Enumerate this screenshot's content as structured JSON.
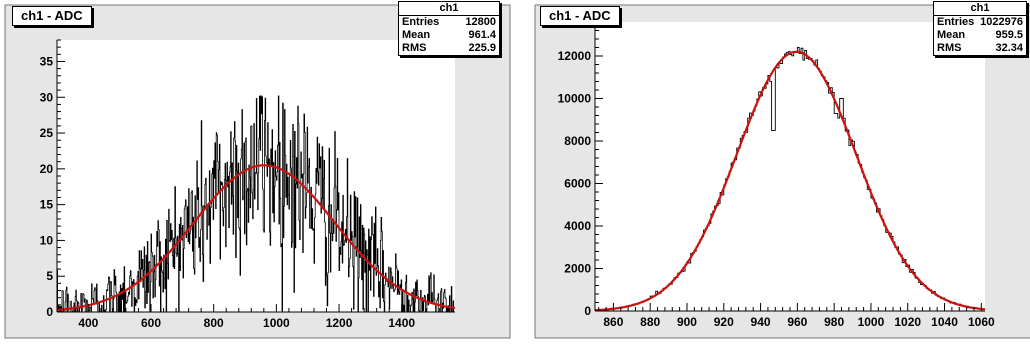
{
  "chart_data": [
    {
      "type": "histogram",
      "title": "ch1 - ADC",
      "stats": {
        "name": "ch1",
        "rows": [
          {
            "label": "Entries",
            "value": "12800"
          },
          {
            "label": "Mean",
            "value": "961.4"
          },
          {
            "label": "RMS",
            "value": "225.9"
          }
        ]
      },
      "xlim": [
        300,
        1570
      ],
      "ylim": [
        0,
        38
      ],
      "xticks": [
        400,
        600,
        800,
        1000,
        1200,
        1400
      ],
      "yticks": [
        0,
        5,
        10,
        15,
        20,
        25,
        30,
        35
      ],
      "bin_width": 2,
      "fit": {
        "type": "gaussian",
        "amplitude": 20.5,
        "mean": 961.4,
        "sigma": 225.9
      },
      "noise": 5.5,
      "grid": false,
      "colors": {
        "frame_bg": "#e6e6e6",
        "plot_bg": "#ffffff",
        "histogram": "#000000",
        "fit": "#cc1111"
      }
    },
    {
      "type": "histogram",
      "title": "ch1 - ADC",
      "stats": {
        "name": "ch1",
        "rows": [
          {
            "label": "Entries",
            "value": "1022976"
          },
          {
            "label": "Mean",
            "value": "959.5"
          },
          {
            "label": "RMS",
            "value": "32.34"
          }
        ]
      },
      "xlim": [
        850,
        1062
      ],
      "ylim": [
        0,
        13600
      ],
      "xticks": [
        860,
        880,
        900,
        920,
        940,
        960,
        980,
        1000,
        1020,
        1040,
        1060
      ],
      "yticks": [
        0,
        2000,
        4000,
        6000,
        8000,
        10000,
        12000
      ],
      "bin_width": 1,
      "fit": {
        "type": "gaussian",
        "amplitude": 12200,
        "mean": 959.5,
        "sigma": 32.34
      },
      "noise": 180,
      "dips": [
        {
          "x": 947,
          "value": 8500
        },
        {
          "x": 981,
          "value": 9300
        },
        {
          "x": 984,
          "value": 10000
        }
      ],
      "grid": false,
      "colors": {
        "frame_bg": "#e6e6e6",
        "plot_bg": "#ffffff",
        "histogram": "#000000",
        "fit": "#cc1111"
      }
    }
  ]
}
